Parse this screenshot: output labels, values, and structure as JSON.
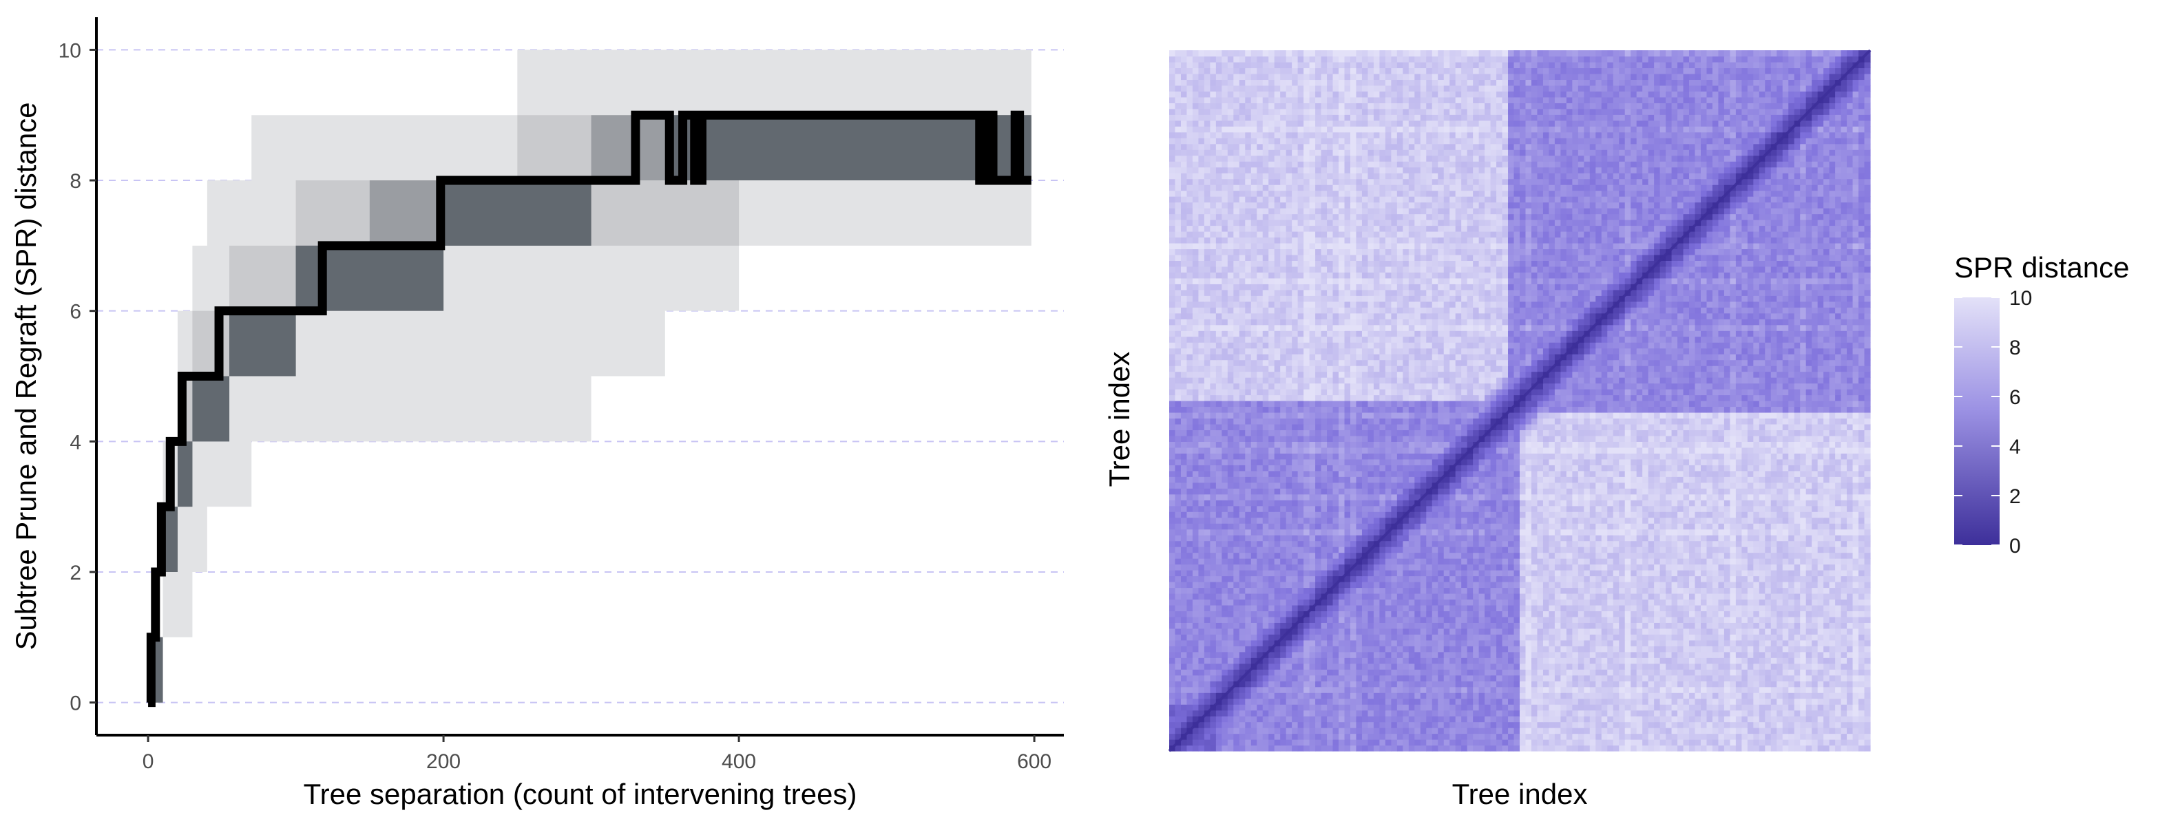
{
  "colors": {
    "grid_line": "#c8c4f4",
    "band_outer": "#e2e3e5",
    "band_mid": "#c9cacd",
    "band_inner": "#9a9da2",
    "band_core": "#626970",
    "median_line": "#000000",
    "heat_low": "#3d2f9a",
    "heat_mid": "#7e70dc",
    "heat_high": "#e3e1f8"
  },
  "chart_data": [
    {
      "type": "line",
      "xlabel": "Tree separation (count of intervening trees)",
      "ylabel": "Subtree Prune and Regraft (SPR) distance",
      "xlim": [
        -35,
        620
      ],
      "ylim": [
        -0.5,
        10.5
      ],
      "x_ticks": [
        0,
        200,
        400,
        600
      ],
      "y_ticks": [
        0,
        2,
        4,
        6,
        8,
        10
      ],
      "grid": "horizontal dashed",
      "series": [
        {
          "role": "median",
          "x": [
            0,
            2,
            5,
            9,
            15,
            23,
            33,
            48,
            80,
            118,
            160,
            198,
            250,
            300,
            330,
            350,
            353,
            362,
            370,
            375,
            440,
            500,
            560,
            563,
            567,
            572,
            580,
            587,
            590,
            595
          ],
          "values": [
            0,
            1,
            2,
            3,
            4,
            5,
            5,
            6,
            6,
            7,
            7,
            8,
            8,
            8,
            9,
            9,
            8,
            9,
            8,
            9,
            9,
            9,
            9,
            8,
            9,
            8,
            8,
            9,
            8,
            8
          ]
        },
        {
          "role": "outer band (full range)",
          "x": [
            0,
            10,
            20,
            30,
            40,
            55,
            70,
            100,
            150,
            200,
            250,
            300,
            350,
            400,
            450,
            500,
            550,
            595
          ],
          "low": [
            0,
            1,
            1,
            2,
            3,
            3,
            4,
            4,
            4,
            4,
            4,
            5,
            6,
            7,
            7,
            7,
            7,
            7
          ],
          "high": [
            1,
            4,
            6,
            7,
            8,
            8,
            9,
            9,
            9,
            9,
            10,
            10,
            10,
            10,
            10,
            10,
            10,
            10
          ]
        },
        {
          "role": "middle band",
          "x": [
            0,
            10,
            20,
            30,
            40,
            55,
            70,
            100,
            150,
            200,
            250,
            300,
            350,
            400,
            450,
            500,
            550,
            595
          ],
          "low": [
            0,
            2,
            3,
            4,
            4,
            5,
            5,
            6,
            6,
            7,
            7,
            7,
            7,
            8,
            8,
            8,
            8,
            8
          ],
          "high": [
            1,
            3,
            5,
            6,
            6,
            7,
            7,
            8,
            8,
            8,
            9,
            9,
            9,
            9,
            9,
            9,
            9,
            9
          ]
        },
        {
          "role": "inner band",
          "x": [
            0,
            10,
            20,
            30,
            40,
            55,
            70,
            100,
            150,
            200,
            250,
            300,
            350,
            400,
            450,
            500,
            550,
            595
          ],
          "low": [
            0,
            2,
            3,
            4,
            4,
            5,
            5,
            6,
            6,
            7,
            7,
            8,
            8,
            8,
            8,
            8,
            8,
            8
          ],
          "high": [
            1,
            3,
            4,
            5,
            5,
            6,
            6,
            7,
            8,
            8,
            8,
            9,
            9,
            9,
            9,
            9,
            9,
            9
          ]
        },
        {
          "role": "core band",
          "x": [
            0,
            10,
            20,
            30,
            40,
            55,
            70,
            100,
            150,
            200,
            250,
            300,
            350,
            400,
            450,
            500,
            550,
            595
          ],
          "low": [
            0,
            2,
            3,
            4,
            4,
            5,
            5,
            6,
            6,
            7,
            7,
            8,
            8,
            8,
            8,
            8,
            8,
            8
          ],
          "high": [
            1,
            3,
            4,
            5,
            5,
            6,
            6,
            7,
            7,
            8,
            8,
            8,
            9,
            9,
            9,
            9,
            9,
            9
          ]
        }
      ]
    },
    {
      "type": "heatmap",
      "xlabel": "Tree index",
      "ylabel": "Tree index",
      "legend_title": "SPR distance",
      "legend_ticks": [
        0,
        2,
        4,
        6,
        8,
        10
      ],
      "legend_placement": "right",
      "value_range": [
        0,
        10
      ],
      "n_trees": 600,
      "blocks": [
        {
          "range": [
            0,
            300
          ],
          "distance": 6
        },
        {
          "range": [
            290,
            600
          ],
          "distance": 6
        },
        {
          "range": [
            0,
            40
          ],
          "distance": 4
        }
      ],
      "diagonal_distance": 0,
      "background_distance": 9
    }
  ]
}
